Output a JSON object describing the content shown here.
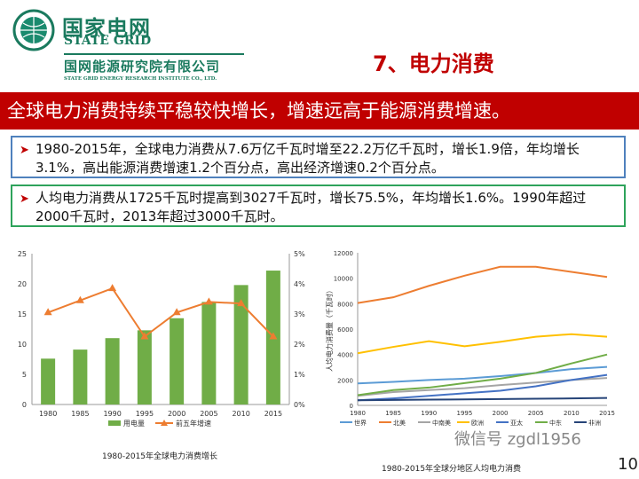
{
  "header": {
    "logo_cn": "国家电网",
    "logo_en": "STATE GRID",
    "institute_cn": "国网能源研究院有限公司",
    "institute_en": "STATE GRID ENERGY RESEARCH INSTITUTE CO., LTD.",
    "slide_title": "7、电力消费"
  },
  "banner": "全球电力消费持续平稳较快增长，增速远高于能源消费增速。",
  "bullets": [
    "1980-2015年，全球电力消费从7.6万亿千瓦时增至22.2万亿千瓦时，增长1.9倍，年均增长3.1%，高出能源消费增速1.2个百分点，高出经济增速0.2个百分点。",
    "人均电力消费从1725千瓦时提高到3027千瓦时，增长75.5%，年均增长1.6%。1990年超过2000千瓦时，2013年超过3000千瓦时。"
  ],
  "page_number": "10",
  "watermark": "微信号 zgdl1956",
  "colors": {
    "accent": "#c00000",
    "brand": "#1a7a5e",
    "bar": "#70ad47",
    "line": "#ed7d31"
  },
  "chart_data": [
    {
      "type": "bar+line",
      "title": "1980-2015年全球电力消费增长",
      "categories": [
        "1980",
        "1985",
        "1990",
        "1995",
        "2000",
        "2005",
        "2010",
        "2015"
      ],
      "series": [
        {
          "name": "用电量",
          "type": "bar",
          "axis": "left",
          "values": [
            7.6,
            9.1,
            11.0,
            12.3,
            14.3,
            17.0,
            19.8,
            22.2
          ],
          "color": "#70ad47"
        },
        {
          "name": "前五年增速",
          "type": "line",
          "axis": "right",
          "values": [
            3.05,
            3.45,
            3.85,
            2.25,
            3.05,
            3.4,
            3.35,
            2.25
          ],
          "color": "#ed7d31"
        }
      ],
      "ylim": [
        0,
        25
      ],
      "yticks": [
        "0",
        "5",
        "10",
        "15",
        "20",
        "25"
      ],
      "y2lim": [
        0,
        5
      ],
      "y2ticks": [
        "0%",
        "1%",
        "2%",
        "3%",
        "4%",
        "5%"
      ],
      "legend": "bottom",
      "grid": false
    },
    {
      "type": "line",
      "title": "1980-2015年全球分地区人均电力消费",
      "ylabel": "人均电力消费量（千瓦时）",
      "x": [
        "1980",
        "1985",
        "1990",
        "1995",
        "2000",
        "2005",
        "2010",
        "2015"
      ],
      "ylim": [
        0,
        12000
      ],
      "yticks": [
        "0",
        "2000",
        "4000",
        "6000",
        "8000",
        "10000",
        "12000"
      ],
      "legend": "bottom",
      "grid": false,
      "series": [
        {
          "name": "世界",
          "color": "#5b9bd5",
          "values": [
            1725,
            1850,
            2000,
            2100,
            2300,
            2550,
            2850,
            3027
          ]
        },
        {
          "name": "北美",
          "color": "#ed7d31",
          "values": [
            8050,
            8500,
            9400,
            10200,
            10900,
            10900,
            10500,
            10100
          ]
        },
        {
          "name": "中南美",
          "color": "#a5a5a5",
          "values": [
            750,
            1050,
            1200,
            1350,
            1600,
            1800,
            2000,
            2150
          ]
        },
        {
          "name": "欧洲",
          "color": "#ffc000",
          "values": [
            4100,
            4600,
            5050,
            4650,
            5000,
            5400,
            5600,
            5400
          ]
        },
        {
          "name": "亚太",
          "color": "#4472c4",
          "values": [
            400,
            550,
            750,
            950,
            1150,
            1500,
            2000,
            2400
          ]
        },
        {
          "name": "中东",
          "color": "#70ad47",
          "values": [
            800,
            1200,
            1400,
            1750,
            2100,
            2550,
            3300,
            4000
          ]
        },
        {
          "name": "非洲",
          "color": "#264478",
          "values": [
            400,
            430,
            450,
            470,
            500,
            520,
            550,
            580
          ]
        }
      ]
    }
  ]
}
